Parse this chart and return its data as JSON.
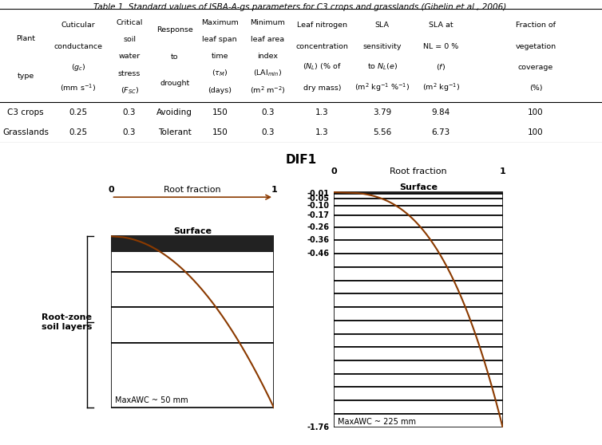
{
  "title": "Table 1. Standard values of ISBA-A-gs parameters for C3 crops and grasslands (Gibelin et al., 2006).",
  "col_headers": [
    [
      "Plant",
      "type"
    ],
    [
      "Cuticular",
      "conductance",
      "($g_c$)",
      "(mm s$^{-1}$)"
    ],
    [
      "Critical",
      "soil",
      "water",
      "stress",
      "($F_{SC}$)"
    ],
    [
      "Response",
      "to",
      "drought"
    ],
    [
      "Maximum",
      "leaf span",
      "time",
      "($\\tau_M$)",
      "(days)"
    ],
    [
      "Minimum",
      "leaf area",
      "index",
      "(LAI$_{min}$)",
      "(m$^2$ m$^{-2}$)"
    ],
    [
      "Leaf nitrogen",
      "concentration",
      "($N_L$) (% of",
      "dry mass)"
    ],
    [
      "SLA",
      "sensitivity",
      "to $N_L$($e$)",
      "(m$^2$ kg$^{-1}$ %$^{-1}$)"
    ],
    [
      "SLA at",
      "NL = 0 %",
      "($f$)",
      "(m$^2$ kg$^{-1}$)"
    ],
    [
      "Fraction of",
      "vegetation",
      "coverage",
      "(%)"
    ]
  ],
  "rows": [
    [
      "C3 crops",
      "0.25",
      "0.3",
      "Avoiding",
      "150",
      "0.3",
      "1.3",
      "3.79",
      "9.84",
      "100"
    ],
    [
      "Grasslands",
      "0.25",
      "0.3",
      "Tolerant",
      "150",
      "0.3",
      "1.3",
      "5.56",
      "6.73",
      "100"
    ]
  ],
  "dif1_label": "DIF1",
  "left_diagram": {
    "n_layers": 4,
    "label": "MaxAWC ~ 50 mm",
    "root_label": "Root fraction",
    "surface_label": "Surface",
    "curve_color": "#8B3A00",
    "line_color": "#000000"
  },
  "right_diagram": {
    "n_layers": 20,
    "label": "MaxAWC ~ 225 mm",
    "root_label": "Root fraction",
    "surface_label": "Surface",
    "depth_labels": [
      "-0.01",
      "-0.05",
      "-0.10",
      "-0.17",
      "-0.26",
      "-0.36",
      "-0.46"
    ],
    "bottom_label": "-1.76",
    "curve_color": "#8B3A00",
    "line_color": "#000000"
  },
  "bracket_label": "Root-zone\nsoil layers",
  "bg_color": "#ffffff"
}
